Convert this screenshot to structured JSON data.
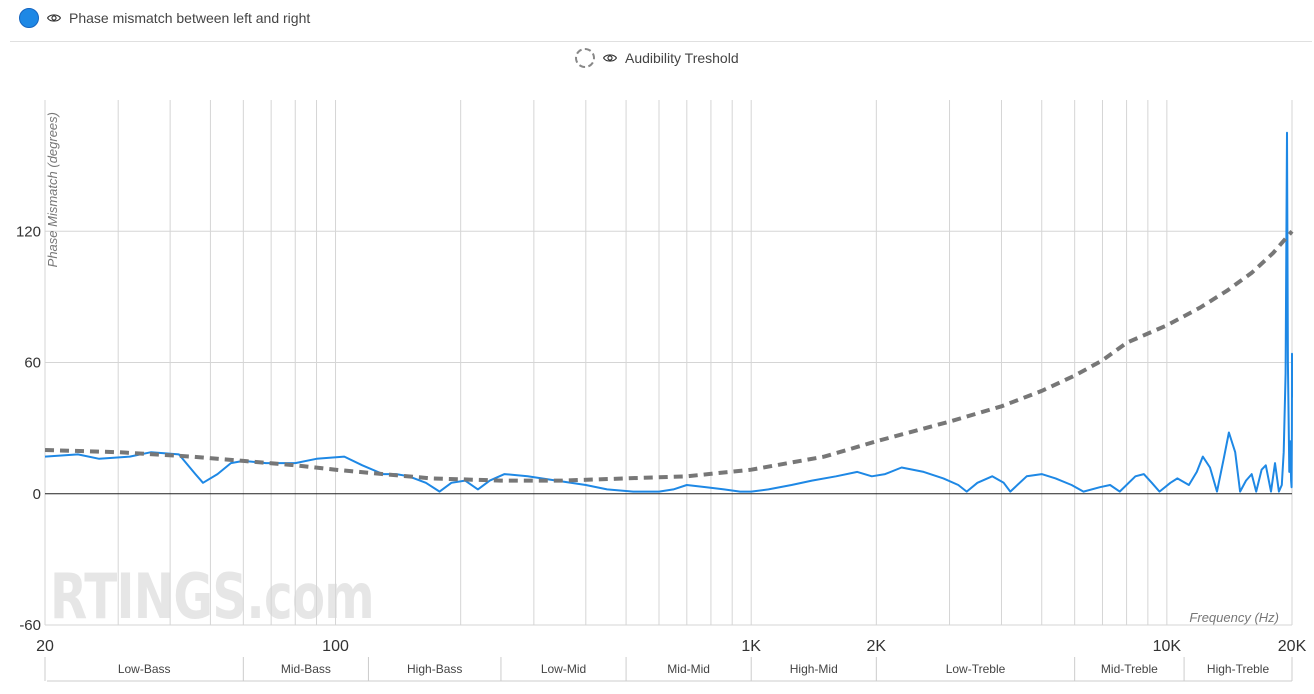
{
  "legend": {
    "series1_label": "Phase mismatch between left and right",
    "series2_label": "Audibility Treshold"
  },
  "icons": {
    "visibility": "eye-icon"
  },
  "watermark": "RTINGS.com",
  "colors": {
    "series": "#1e88e5",
    "threshold": "#777777",
    "grid": "#d5d5d5",
    "zero": "#222222"
  },
  "chart_data": {
    "type": "line",
    "title": "",
    "xlabel": "Frequency (Hz)",
    "ylabel": "Phase Mismatch (degrees)",
    "x_scale": "log",
    "xlim": [
      20,
      20000
    ],
    "ylim": [
      -60,
      180
    ],
    "y_ticks": [
      -60,
      0,
      60,
      120
    ],
    "x_tick_labels": [
      {
        "value": 20,
        "label": "20"
      },
      {
        "value": 100,
        "label": "100"
      },
      {
        "value": 1000,
        "label": "1K"
      },
      {
        "value": 2000,
        "label": "2K"
      },
      {
        "value": 10000,
        "label": "10K"
      },
      {
        "value": 20000,
        "label": "20K"
      }
    ],
    "grid": true,
    "bands": [
      {
        "label": "Low-Bass",
        "from": 20,
        "to": 60
      },
      {
        "label": "Mid-Bass",
        "from": 60,
        "to": 120
      },
      {
        "label": "High-Bass",
        "from": 120,
        "to": 250
      },
      {
        "label": "Low-Mid",
        "from": 250,
        "to": 500
      },
      {
        "label": "Mid-Mid",
        "from": 500,
        "to": 1000
      },
      {
        "label": "High-Mid",
        "from": 1000,
        "to": 2000
      },
      {
        "label": "Low-Treble",
        "from": 2000,
        "to": 6000
      },
      {
        "label": "Mid-Treble",
        "from": 6000,
        "to": 11000
      },
      {
        "label": "High-Treble",
        "from": 11000,
        "to": 20000
      }
    ],
    "series": [
      {
        "name": "Phase mismatch between left and right",
        "points": [
          [
            20,
            17
          ],
          [
            24,
            18
          ],
          [
            27,
            16
          ],
          [
            32,
            17
          ],
          [
            36,
            19
          ],
          [
            42,
            18
          ],
          [
            46,
            9
          ],
          [
            48,
            5
          ],
          [
            52,
            9
          ],
          [
            56,
            14
          ],
          [
            60,
            15
          ],
          [
            68,
            14
          ],
          [
            80,
            14
          ],
          [
            90,
            16
          ],
          [
            105,
            17
          ],
          [
            116,
            13
          ],
          [
            130,
            9
          ],
          [
            140,
            9
          ],
          [
            150,
            8
          ],
          [
            165,
            5
          ],
          [
            178,
            1
          ],
          [
            190,
            5
          ],
          [
            205,
            6
          ],
          [
            220,
            2
          ],
          [
            235,
            6
          ],
          [
            255,
            9
          ],
          [
            290,
            8
          ],
          [
            340,
            6
          ],
          [
            400,
            4
          ],
          [
            450,
            2
          ],
          [
            520,
            1
          ],
          [
            570,
            1
          ],
          [
            600,
            1
          ],
          [
            650,
            2
          ],
          [
            700,
            4
          ],
          [
            780,
            3
          ],
          [
            860,
            2
          ],
          [
            940,
            1
          ],
          [
            1000,
            1
          ],
          [
            1100,
            2
          ],
          [
            1250,
            4
          ],
          [
            1400,
            6
          ],
          [
            1600,
            8
          ],
          [
            1800,
            10
          ],
          [
            1950,
            8
          ],
          [
            2100,
            9
          ],
          [
            2300,
            12
          ],
          [
            2600,
            10
          ],
          [
            2900,
            7
          ],
          [
            3150,
            4
          ],
          [
            3300,
            1
          ],
          [
            3500,
            5
          ],
          [
            3800,
            8
          ],
          [
            4050,
            5
          ],
          [
            4200,
            1
          ],
          [
            4600,
            8
          ],
          [
            5000,
            9
          ],
          [
            5400,
            7
          ],
          [
            5900,
            4
          ],
          [
            6300,
            1
          ],
          [
            6900,
            3
          ],
          [
            7300,
            4
          ],
          [
            7700,
            1
          ],
          [
            8400,
            8
          ],
          [
            8800,
            9
          ],
          [
            9200,
            5
          ],
          [
            9600,
            1
          ],
          [
            10200,
            5
          ],
          [
            10600,
            7
          ],
          [
            11300,
            4
          ],
          [
            11800,
            10
          ],
          [
            12200,
            17
          ],
          [
            12700,
            12
          ],
          [
            13200,
            1
          ],
          [
            13700,
            16
          ],
          [
            14100,
            28
          ],
          [
            14600,
            19
          ],
          [
            15000,
            1
          ],
          [
            15500,
            6
          ],
          [
            16000,
            9
          ],
          [
            16400,
            1
          ],
          [
            16900,
            11
          ],
          [
            17300,
            13
          ],
          [
            17800,
            1
          ],
          [
            18200,
            14
          ],
          [
            18600,
            1
          ],
          [
            18900,
            4
          ],
          [
            19100,
            19
          ],
          [
            19300,
            55
          ],
          [
            19450,
            165
          ],
          [
            19550,
            60
          ],
          [
            19700,
            10
          ],
          [
            19800,
            24
          ],
          [
            19900,
            6
          ],
          [
            19960,
            3
          ],
          [
            19990,
            30
          ],
          [
            20000,
            64
          ],
          [
            20000,
            44
          ]
        ]
      },
      {
        "name": "Audibility Treshold",
        "style": "dashed",
        "points": [
          [
            20,
            20
          ],
          [
            30,
            19
          ],
          [
            45,
            17
          ],
          [
            60,
            15
          ],
          [
            80,
            13
          ],
          [
            100,
            11
          ],
          [
            130,
            9
          ],
          [
            170,
            7
          ],
          [
            250,
            6
          ],
          [
            350,
            6
          ],
          [
            500,
            7
          ],
          [
            700,
            8
          ],
          [
            1000,
            11
          ],
          [
            1500,
            17
          ],
          [
            2000,
            24
          ],
          [
            3000,
            33
          ],
          [
            4000,
            40
          ],
          [
            5000,
            47
          ],
          [
            6000,
            54
          ],
          [
            7000,
            61
          ],
          [
            8000,
            69
          ],
          [
            10000,
            77
          ],
          [
            12000,
            85
          ],
          [
            14000,
            93
          ],
          [
            16000,
            101
          ],
          [
            18000,
            110
          ],
          [
            20000,
            120
          ]
        ]
      }
    ]
  }
}
